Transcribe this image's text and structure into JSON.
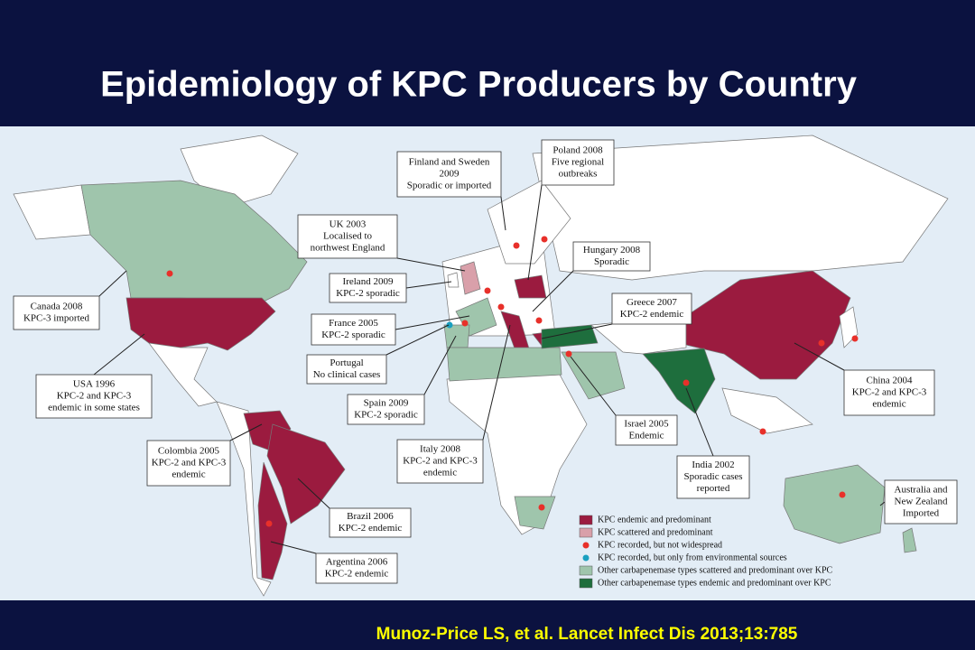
{
  "title": "Epidemiology of KPC Producers by Country",
  "callouts": [
    {
      "lines": [
        "Finland and Sweden",
        "2009",
        "Sporadic or imported"
      ]
    },
    {
      "lines": [
        "Poland 2008",
        "Five regional",
        "outbreaks"
      ]
    },
    {
      "lines": [
        "UK 2003",
        "Localised to",
        "northwest England"
      ]
    },
    {
      "lines": [
        "Hungary 2008",
        "Sporadic"
      ]
    },
    {
      "lines": [
        "Ireland 2009",
        "KPC-2 sporadic"
      ]
    },
    {
      "lines": [
        "Greece 2007",
        "KPC-2 endemic"
      ]
    },
    {
      "lines": [
        "Canada 2008",
        "KPC-3 imported"
      ]
    },
    {
      "lines": [
        "France 2005",
        "KPC-2 sporadic"
      ]
    },
    {
      "lines": [
        "Portugal",
        "No clinical cases"
      ]
    },
    {
      "lines": [
        "USA 1996",
        "KPC-2 and KPC-3",
        "endemic in some states"
      ]
    },
    {
      "lines": [
        "Spain 2009",
        "KPC-2 sporadic"
      ]
    },
    {
      "lines": [
        "Israel 2005",
        "Endemic"
      ]
    },
    {
      "lines": [
        "China 2004",
        "KPC-2 and KPC-3",
        "endemic"
      ]
    },
    {
      "lines": [
        "Colombia 2005",
        "KPC-2 and KPC-3",
        "endemic"
      ]
    },
    {
      "lines": [
        "Italy 2008",
        "KPC-2 and KPC-3",
        "endemic"
      ]
    },
    {
      "lines": [
        "India 2002",
        "Sporadic cases",
        "reported"
      ]
    },
    {
      "lines": [
        "Brazil 2006",
        "KPC-2 endemic"
      ]
    },
    {
      "lines": [
        "Australia and",
        "New Zealand",
        "Imported"
      ]
    },
    {
      "lines": [
        "Argentina 2006",
        "KPC-2 endemic"
      ]
    }
  ],
  "legend": [
    {
      "label": "KPC endemic and predominant"
    },
    {
      "label": "KPC scattered and predominant"
    },
    {
      "label": "KPC recorded, but not widespread"
    },
    {
      "label": "KPC recorded, but only from environmental sources"
    },
    {
      "label": "Other carbapenemase types scattered and predominant over KPC"
    },
    {
      "label": "Other carbapenemase types endemic and predominant over KPC"
    }
  ],
  "citation": "Munoz-Price LS, et al. Lancet Infect Dis 2013;13:785"
}
